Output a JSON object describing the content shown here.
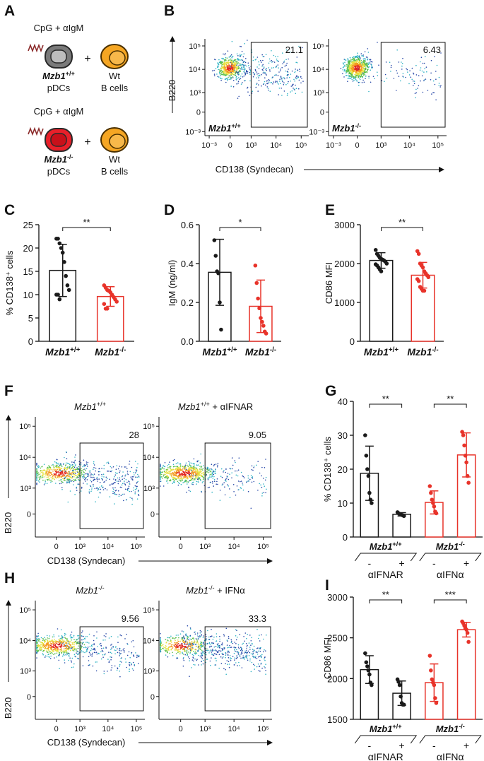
{
  "panel_labels": [
    "A",
    "B",
    "C",
    "D",
    "E",
    "F",
    "G",
    "H",
    "I"
  ],
  "schematic": {
    "rows": [
      {
        "stimulus": "CpG + αIgM",
        "pdc_genotype": "Mzb1+/+",
        "pdc_label": "pDCs",
        "plus": "+",
        "bcell_genotype": "Wt",
        "bcell_label": "B cells"
      },
      {
        "stimulus": "CpG + αIgM",
        "pdc_genotype": "Mzb1-/-",
        "pdc_label": "pDCs",
        "plus": "+",
        "bcell_genotype": "Wt",
        "bcell_label": "B cells"
      }
    ]
  },
  "flow": [
    {
      "y_label": "B220",
      "x_label": "CD138 (Syndecan)",
      "label_position": "inside",
      "xlim": [
        -1500,
        200000
      ],
      "ylim": [
        -1500,
        200000
      ],
      "xticks": [
        {
          "value": -1000,
          "label": "10⁻³"
        },
        0,
        {
          "value": 1000,
          "label": "10³"
        },
        {
          "value": 10000,
          "label": "10⁴"
        },
        {
          "value": 100000,
          "label": "10⁵"
        }
      ],
      "yticks": [
        {
          "value": -1000,
          "label": "10⁻³"
        },
        0,
        {
          "value": 1000,
          "label": "10³"
        },
        {
          "value": 10000,
          "label": "10⁴"
        },
        {
          "value": 100000,
          "label": "10⁵"
        }
      ],
      "plots": [
        {
          "label": "Mzb1+/+",
          "gate_percent": 21.1
        },
        {
          "label": "Mzb1-/-",
          "gate_percent": 6.43
        }
      ]
    },
    {
      "y_label": "B220",
      "x_label": "CD138 (Syndecan)",
      "label_position": "top",
      "xlim": [
        -800,
        200000
      ],
      "ylim": [
        -800,
        200000
      ],
      "xticks": [
        0,
        {
          "value": 1000,
          "label": "10³"
        },
        {
          "value": 10000,
          "label": "10⁴"
        },
        {
          "value": 100000,
          "label": "10⁵"
        }
      ],
      "yticks": [
        0,
        {
          "value": 1000,
          "label": "10³"
        },
        {
          "value": 10000,
          "label": "10⁴"
        },
        {
          "value": 100000,
          "label": "10⁵"
        }
      ],
      "plots": [
        {
          "label": "Mzb1+/+",
          "gate_percent": 28
        },
        {
          "label": "Mzb1+/+ + αIFNAR",
          "gate_percent": 9.05
        }
      ]
    },
    {
      "y_label": "B220",
      "x_label": "CD138 (Syndecan)",
      "label_position": "top",
      "xlim": [
        -800,
        200000
      ],
      "ylim": [
        -800,
        200000
      ],
      "xticks": [
        0,
        {
          "value": 1000,
          "label": "10³"
        },
        {
          "value": 10000,
          "label": "10⁴"
        },
        {
          "value": 100000,
          "label": "10⁵"
        }
      ],
      "yticks": [
        0,
        {
          "value": 1000,
          "label": "10³"
        },
        {
          "value": 10000,
          "label": "10⁴"
        },
        {
          "value": 100000,
          "label": "10⁵"
        }
      ],
      "plots": [
        {
          "label": "Mzb1-/-",
          "gate_percent": 9.56
        },
        {
          "label": "Mzb1-/- + IFNα",
          "gate_percent": 33.3
        }
      ]
    }
  ],
  "chart_data": [
    {
      "type": "bar",
      "y_label": "% CD138⁺ cells",
      "categories": [
        "Mzb1+/+",
        "Mzb1-/-"
      ],
      "values": [
        15.2,
        9.6
      ],
      "errors": [
        5.6,
        2.1
      ],
      "colors": [
        "#1a1a1a",
        "#e8332a"
      ],
      "points": [
        [
          22,
          22,
          21,
          20,
          19,
          17,
          14,
          12,
          11,
          10,
          10,
          9
        ],
        [
          12,
          11.5,
          11,
          10.8,
          10.5,
          10,
          9.5,
          9,
          8.5,
          8,
          7,
          7
        ]
      ],
      "ylim": [
        0,
        25
      ],
      "yticks": [
        0,
        5,
        10,
        15,
        20,
        25
      ],
      "significance": [
        "**"
      ]
    },
    {
      "type": "bar",
      "y_label": "IgM (ng/ml)",
      "categories": [
        "Mzb1+/+",
        "Mzb1-/-"
      ],
      "values": [
        0.355,
        0.18
      ],
      "errors": [
        0.17,
        0.135
      ],
      "colors": [
        "#1a1a1a",
        "#e8332a"
      ],
      "points": [
        [
          0.52,
          0.44,
          0.36,
          0.35,
          0.2,
          0.06
        ],
        [
          0.39,
          0.3,
          0.22,
          0.17,
          0.12,
          0.1,
          0.08,
          0.05,
          0.04
        ]
      ],
      "ylim": [
        0,
        0.6
      ],
      "yticks": [
        {
          "value": 0,
          "label": "0.0"
        },
        0.2,
        0.4,
        0.6
      ],
      "significance": [
        "*"
      ]
    },
    {
      "type": "bar",
      "y_label": "CD86 MFI",
      "categories": [
        "Mzb1+/+",
        "Mzb1-/-"
      ],
      "values": [
        2080,
        1700
      ],
      "errors": [
        200,
        330
      ],
      "colors": [
        "#1a1a1a",
        "#e8332a"
      ],
      "points": [
        [
          2350,
          2250,
          2200,
          2150,
          2120,
          2100,
          2080,
          2050,
          2000,
          1980,
          1950,
          1900,
          1850,
          1800
        ],
        [
          2320,
          2250,
          2000,
          1950,
          1900,
          1800,
          1750,
          1700,
          1650,
          1600,
          1550,
          1400,
          1350,
          1300,
          1300
        ]
      ],
      "ylim": [
        0,
        3000
      ],
      "yticks": [
        0,
        1000,
        2000,
        3000
      ],
      "significance": [
        "**"
      ]
    },
    {
      "type": "bar",
      "y_label": "% CD138⁺ cells",
      "categories": [
        "-",
        "+",
        "-",
        "+"
      ],
      "groups": [
        {
          "genotype": "Mzb1+/+",
          "treatment": "αIFNAR"
        },
        {
          "genotype": "Mzb1-/-",
          "treatment": "αIFNα"
        }
      ],
      "values": [
        18.8,
        6.7,
        10.2,
        24.2
      ],
      "errors": [
        8,
        0.5,
        3.4,
        6.5
      ],
      "colors": [
        "#1a1a1a",
        "#1a1a1a",
        "#e8332a",
        "#e8332a"
      ],
      "points": [
        [
          30,
          24,
          20,
          18,
          13,
          11,
          10
        ],
        [
          7.3,
          7,
          6.8,
          6.7,
          6.5,
          6.4,
          6.2
        ],
        [
          15,
          13,
          11,
          10,
          9,
          7.5,
          7
        ],
        [
          31,
          30,
          27,
          24,
          22,
          18,
          16
        ]
      ],
      "ylim": [
        0,
        40
      ],
      "yticks": [
        0,
        10,
        20,
        30,
        40
      ],
      "significance": [
        "**",
        "**"
      ]
    },
    {
      "type": "bar",
      "y_label": "CD86 MFI",
      "categories": [
        "-",
        "+",
        "-",
        "+"
      ],
      "groups": [
        {
          "genotype": "Mzb1+/+",
          "treatment": "αIFNAR"
        },
        {
          "genotype": "Mzb1-/-",
          "treatment": "αIFNα"
        }
      ],
      "values": [
        2110,
        1820,
        1950,
        2600
      ],
      "errors": [
        170,
        150,
        230,
        90
      ],
      "colors": [
        "#1a1a1a",
        "#1a1a1a",
        "#e8332a",
        "#e8332a"
      ],
      "points": [
        [
          2310,
          2200,
          2150,
          2100,
          2050,
          1950,
          1920
        ],
        [
          1990,
          1960,
          1920,
          1780,
          1700,
          1680,
          1680
        ],
        [
          2280,
          2100,
          1990,
          1950,
          1920,
          1760,
          1700
        ],
        [
          2700,
          2680,
          2650,
          2620,
          2600,
          2560,
          2450
        ]
      ],
      "ylim": [
        1500,
        3000
      ],
      "yticks": [
        1500,
        2000,
        2500,
        3000
      ],
      "significance": [
        "**",
        "***"
      ]
    }
  ]
}
